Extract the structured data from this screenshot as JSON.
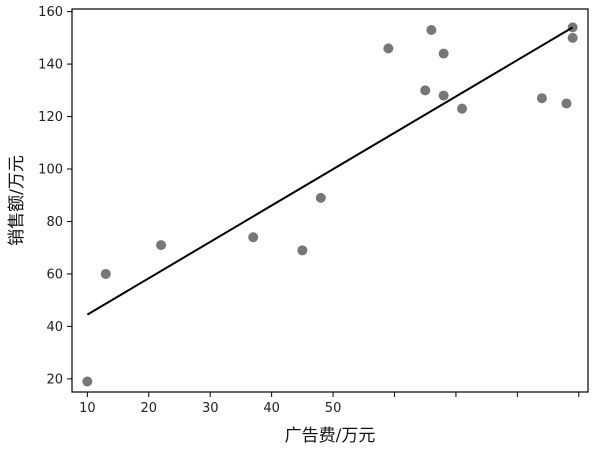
{
  "chart_data": {
    "type": "scatter",
    "title": "",
    "xlabel": "广告费/万元",
    "ylabel": "销售额/万元",
    "xlim": [
      7.5,
      91.5
    ],
    "ylim": [
      15,
      161
    ],
    "x_ticks": [
      10,
      20,
      30,
      40,
      50,
      60,
      70,
      80,
      90
    ],
    "x_tick_labels": [
      "10",
      "20",
      "30",
      "40",
      "50",
      "",
      "",
      "",
      ""
    ],
    "y_ticks": [
      20,
      40,
      60,
      80,
      100,
      120,
      140,
      160
    ],
    "y_tick_labels": [
      "20",
      "40",
      "60",
      "80",
      "100",
      "120",
      "140",
      "160"
    ],
    "grid": false,
    "point_color": "#777777",
    "line_color": "#000000",
    "series": [
      {
        "x": [
          10,
          13,
          22,
          37,
          45,
          48,
          59,
          65,
          66,
          68,
          68,
          71,
          84,
          88,
          89,
          89
        ],
        "y": [
          19,
          60,
          71,
          74,
          69,
          89,
          146,
          130,
          153,
          144,
          128,
          123,
          127,
          125,
          154,
          150
        ]
      }
    ],
    "fit_line": {
      "x": [
        10,
        89
      ],
      "y": [
        44.5,
        154
      ]
    }
  }
}
